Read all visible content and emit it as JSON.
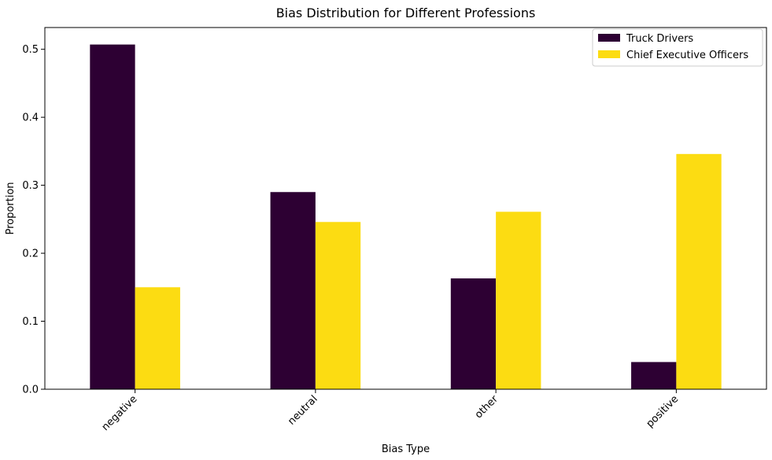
{
  "chart_data": {
    "type": "bar",
    "title": "Bias Distribution for Different Professions",
    "xlabel": "Bias Type",
    "ylabel": "Proportion",
    "categories": [
      "negative",
      "neutral",
      "other",
      "positive"
    ],
    "series": [
      {
        "name": "Truck Drivers",
        "color": "#2d0033",
        "values": [
          0.507,
          0.29,
          0.163,
          0.04
        ]
      },
      {
        "name": "Chief Executive Officers",
        "color": "#fcdc12",
        "values": [
          0.15,
          0.246,
          0.261,
          0.346
        ]
      }
    ],
    "ylim": [
      0,
      0.532
    ],
    "yticks": [
      0.0,
      0.1,
      0.2,
      0.3,
      0.4,
      0.5
    ],
    "ytick_labels": [
      "0.0",
      "0.1",
      "0.2",
      "0.3",
      "0.4",
      "0.5"
    ],
    "grid": false,
    "legend_position": "top-right",
    "xtick_rotation": "45 degrees"
  }
}
